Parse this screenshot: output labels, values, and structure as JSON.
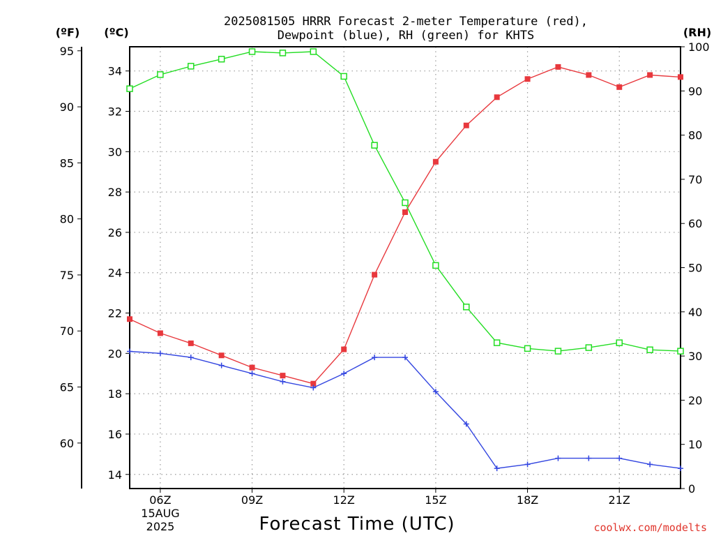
{
  "chart_data": {
    "type": "line",
    "title": "2025081505 HRRR Forecast 2-meter Temperature (red),",
    "subtitle": "Dewpoint (blue), RH (green) for KHTS",
    "xlabel": "Forecast Time (UTC)",
    "credit": "coolwx.com/modelts",
    "left_outer_unit": "(ºF)",
    "left_inner_unit": "(ºC)",
    "right_unit": "(RH)",
    "x_hours": [
      5,
      6,
      7,
      8,
      9,
      10,
      11,
      12,
      13,
      14,
      15,
      16,
      17,
      18,
      19,
      20,
      21,
      22,
      23
    ],
    "xlim": [
      5,
      23
    ],
    "x_ticks": [
      {
        "hour": 6,
        "label": "06Z"
      },
      {
        "hour": 9,
        "label": "09Z"
      },
      {
        "hour": 12,
        "label": "12Z"
      },
      {
        "hour": 15,
        "label": "15Z"
      },
      {
        "hour": 18,
        "label": "18Z"
      },
      {
        "hour": 21,
        "label": "21Z"
      }
    ],
    "x_date_label": [
      "15AUG",
      "2025"
    ],
    "celsius_axis": {
      "ylim": [
        13.3,
        35.2
      ],
      "ticks": [
        14,
        16,
        18,
        20,
        22,
        24,
        26,
        28,
        30,
        32,
        34
      ]
    },
    "fahrenheit_axis": {
      "ticks": [
        60,
        65,
        70,
        75,
        80,
        85,
        90,
        95
      ]
    },
    "rh_axis": {
      "ylim": [
        0,
        100
      ],
      "ticks": [
        0,
        10,
        20,
        30,
        40,
        50,
        60,
        70,
        80,
        90,
        100
      ]
    },
    "grid": true,
    "series": [
      {
        "name": "Temperature",
        "axis": "celsius",
        "color": "#e8383d",
        "marker": "filled-square",
        "values": [
          21.7,
          21.0,
          20.5,
          19.9,
          19.3,
          18.9,
          18.5,
          20.2,
          23.9,
          27.0,
          29.5,
          31.3,
          32.7,
          33.6,
          34.2,
          33.8,
          33.2,
          33.8,
          33.7
        ]
      },
      {
        "name": "Dewpoint",
        "axis": "celsius",
        "color": "#3346e0",
        "marker": "plus",
        "values": [
          20.1,
          20.0,
          19.8,
          19.4,
          19.0,
          18.6,
          18.3,
          19.0,
          19.8,
          19.8,
          18.1,
          16.5,
          14.3,
          14.5,
          14.8,
          14.8,
          14.8,
          14.5,
          14.3
        ]
      },
      {
        "name": "RH",
        "axis": "rh",
        "color": "#22dd22",
        "marker": "open-square",
        "values": [
          90.5,
          93.7,
          95.6,
          97.2,
          98.9,
          98.6,
          98.9,
          93.3,
          77.7,
          64.7,
          50.5,
          41.1,
          33.0,
          31.7,
          31.1,
          31.9,
          33.0,
          31.4,
          31.1
        ]
      }
    ]
  }
}
